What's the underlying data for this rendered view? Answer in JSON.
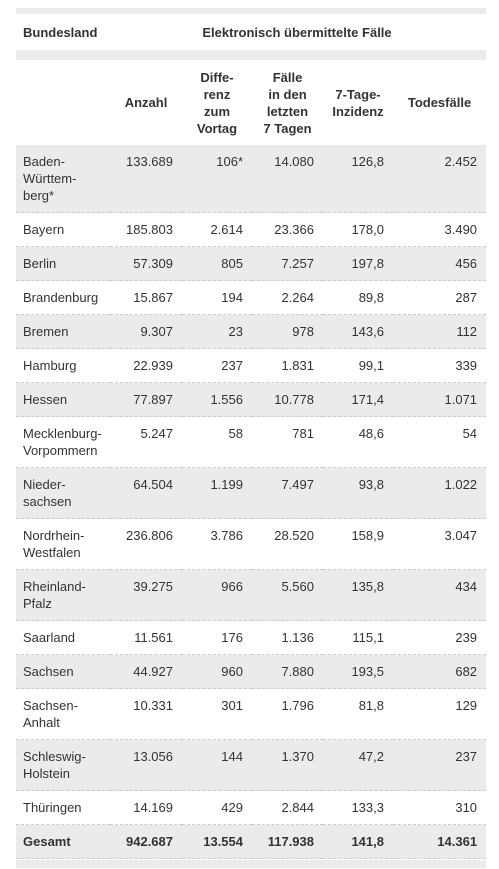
{
  "table": {
    "header": [
      "Bundesland",
      "Elektronisch übermittelte Fälle"
    ],
    "columns": [
      "Anzahl",
      "Diffe-\nrenz\nzum\nVortag",
      "Fälle\nin den\nletzten\n7 Tagen",
      "7-Tage-\nInzidenz",
      "Todesfälle"
    ],
    "rows": [
      [
        "Baden-\nWürttem-\nberg*",
        "133.689",
        "106*",
        "14.080",
        "126,8",
        "2.452"
      ],
      [
        "Bayern",
        "185.803",
        "2.614",
        "23.366",
        "178,0",
        "3.490"
      ],
      [
        "Berlin",
        "57.309",
        "805",
        "7.257",
        "197,8",
        "456"
      ],
      [
        "Brandenburg",
        "15.867",
        "194",
        "2.264",
        "89,8",
        "287"
      ],
      [
        "Bremen",
        "9.307",
        "23",
        "978",
        "143,6",
        "112"
      ],
      [
        "Hamburg",
        "22.939",
        "237",
        "1.831",
        "99,1",
        "339"
      ],
      [
        "Hessen",
        "77.897",
        "1.556",
        "10.778",
        "171,4",
        "1.071"
      ],
      [
        "Mecklenburg-\nVorpommern",
        "5.247",
        "58",
        "781",
        "48,6",
        "54"
      ],
      [
        "Nieder-\nsachsen",
        "64.504",
        "1.199",
        "7.497",
        "93,8",
        "1.022"
      ],
      [
        "Nordrhein-\nWestfalen",
        "236.806",
        "3.786",
        "28.520",
        "158,9",
        "3.047"
      ],
      [
        "Rheinland-\nPfalz",
        "39.275",
        "966",
        "5.560",
        "135,8",
        "434"
      ],
      [
        "Saarland",
        "11.561",
        "176",
        "1.136",
        "115,1",
        "239"
      ],
      [
        "Sachsen",
        "44.927",
        "960",
        "7.880",
        "193,5",
        "682"
      ],
      [
        "Sachsen-\nAnhalt",
        "10.331",
        "301",
        "1.796",
        "81,8",
        "129"
      ],
      [
        "Schleswig-\nHolstein",
        "13.056",
        "144",
        "1.370",
        "47,2",
        "237"
      ],
      [
        "Thüringen",
        "14.169",
        "429",
        "2.844",
        "133,3",
        "310"
      ]
    ],
    "total": [
      "Gesamt",
      "942.687",
      "13.554",
      "117.938",
      "141,8",
      "14.361"
    ]
  }
}
